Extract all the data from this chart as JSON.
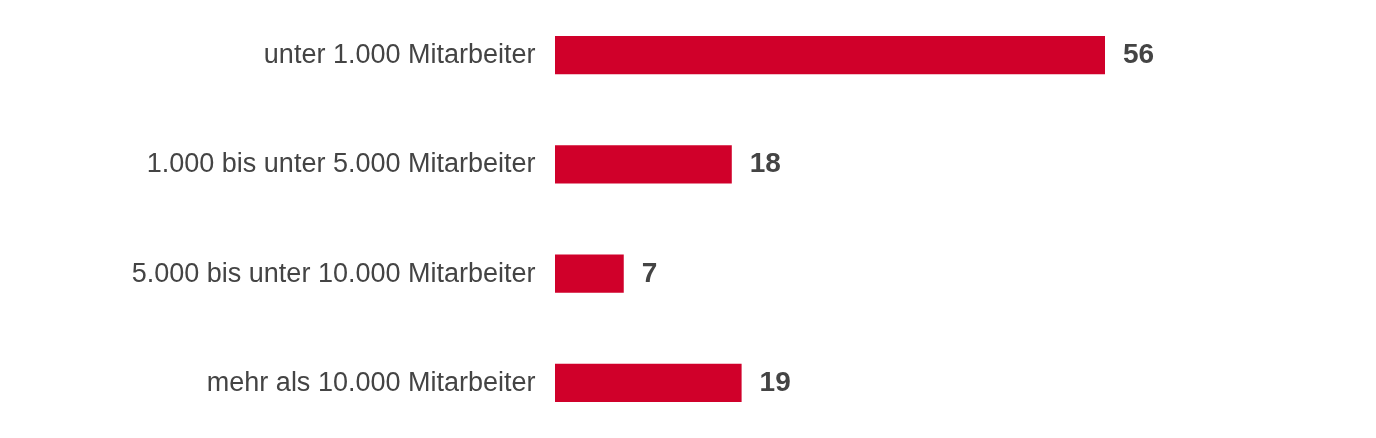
{
  "chart_data": {
    "type": "bar",
    "orientation": "horizontal",
    "categories": [
      "unter 1.000 Mitarbeiter",
      "1.000 bis unter 5.000 Mitarbeiter",
      "5.000 bis unter 10.000 Mitarbeiter",
      "mehr als 10.000 Mitarbeiter"
    ],
    "values": [
      56,
      18,
      7,
      19
    ],
    "color": "#d0002a",
    "data_labels": true
  }
}
